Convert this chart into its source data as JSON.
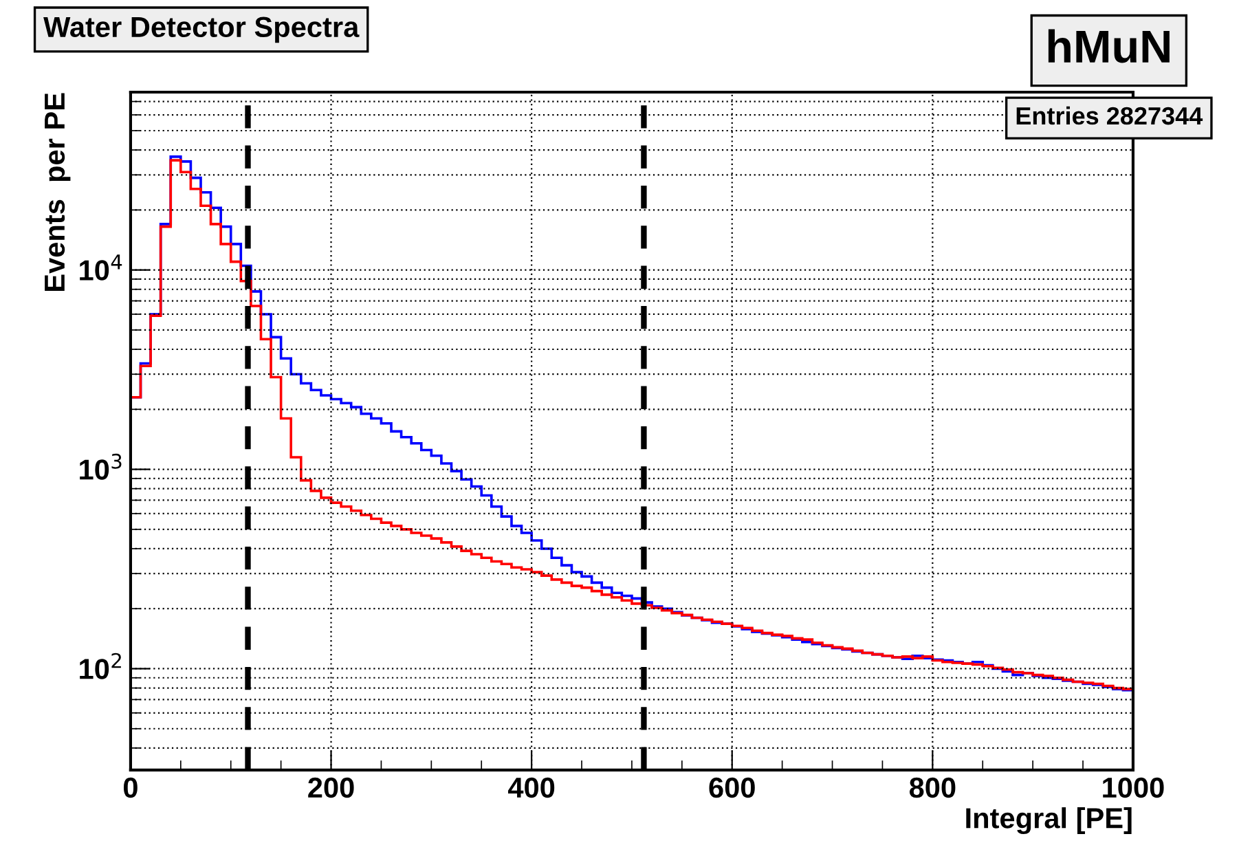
{
  "chart_data": {
    "type": "histogram",
    "title": "Water Detector Spectra",
    "xlabel": "Integral [PE]",
    "ylabel": "Events  per PE",
    "annotations": [
      "hMuN",
      "Entries 2827344"
    ],
    "bins": [
      0,
      10,
      20,
      30,
      40,
      50,
      60,
      70,
      80,
      90,
      100,
      110,
      120,
      130,
      140,
      150,
      160,
      170,
      180,
      190,
      200,
      210,
      220,
      230,
      240,
      250,
      260,
      270,
      280,
      290,
      300,
      310,
      320,
      330,
      340,
      350,
      360,
      370,
      380,
      390,
      400,
      410,
      420,
      430,
      440,
      450,
      460,
      470,
      480,
      490,
      500,
      510,
      520,
      530,
      540,
      550,
      560,
      570,
      580,
      590,
      600,
      610,
      620,
      630,
      640,
      650,
      660,
      670,
      680,
      690,
      700,
      710,
      720,
      730,
      740,
      750,
      760,
      770,
      780,
      790,
      800,
      810,
      820,
      830,
      840,
      850,
      860,
      870,
      880,
      890,
      900,
      910,
      920,
      930,
      940,
      950,
      960,
      970,
      980,
      990,
      1000
    ],
    "series": [
      {
        "color": "#0000ff",
        "values": [
          2300,
          3400,
          6000,
          17000,
          37000,
          35000,
          29000,
          24500,
          20500,
          16500,
          13500,
          10500,
          7800,
          6000,
          4600,
          3600,
          3000,
          2700,
          2500,
          2350,
          2250,
          2150,
          2050,
          1900,
          1800,
          1700,
          1550,
          1450,
          1350,
          1250,
          1170,
          1070,
          980,
          890,
          820,
          740,
          650,
          580,
          520,
          480,
          440,
          400,
          360,
          330,
          305,
          290,
          270,
          255,
          240,
          232,
          225,
          215,
          205,
          200,
          192,
          185,
          180,
          175,
          170,
          168,
          163,
          158,
          153,
          150,
          147,
          144,
          140,
          136,
          133,
          130,
          127,
          125,
          122,
          120,
          118,
          116,
          114,
          112,
          116,
          113,
          111,
          110,
          108,
          106,
          108,
          104,
          100,
          97,
          93,
          95,
          92,
          90,
          89,
          87,
          86,
          84,
          83,
          81,
          79,
          78
        ]
      },
      {
        "color": "#ff0000",
        "values": [
          2300,
          3300,
          5900,
          16500,
          35500,
          31000,
          25500,
          21000,
          17000,
          13500,
          11000,
          8800,
          6600,
          4500,
          2900,
          1800,
          1150,
          880,
          780,
          720,
          680,
          650,
          620,
          590,
          565,
          540,
          520,
          500,
          480,
          465,
          450,
          430,
          410,
          390,
          375,
          360,
          345,
          335,
          322,
          315,
          305,
          293,
          280,
          270,
          260,
          255,
          245,
          235,
          228,
          220,
          212,
          208,
          202,
          196,
          190,
          186,
          180,
          176,
          172,
          168,
          164,
          160,
          155,
          151,
          148,
          146,
          142,
          140,
          135,
          131,
          128,
          126,
          123,
          120,
          118,
          116,
          114,
          115,
          113,
          115,
          110,
          108,
          107,
          106,
          105,
          103,
          101,
          99,
          96,
          95,
          93,
          92,
          90,
          88,
          86,
          85,
          84,
          82,
          80,
          79
        ]
      }
    ],
    "log": "y",
    "xlim": [
      0,
      1000
    ],
    "ylim": [
      31,
      78000
    ],
    "xticks": [
      0,
      200,
      400,
      600,
      800,
      1000
    ],
    "yticks": [
      {
        "value": 100,
        "label": "10$^{2}$"
      },
      {
        "value": 1000,
        "label": "10$^{3}$"
      },
      {
        "value": 10000,
        "label": "10$^{4}$"
      }
    ],
    "ref_lines": [
      {
        "axis": "x",
        "value": 117,
        "color": "#000000",
        "line_style": "dashed"
      },
      {
        "axis": "x",
        "value": 512,
        "color": "#000000",
        "line_style": "dashed"
      }
    ],
    "grid": true,
    "legend": false
  }
}
